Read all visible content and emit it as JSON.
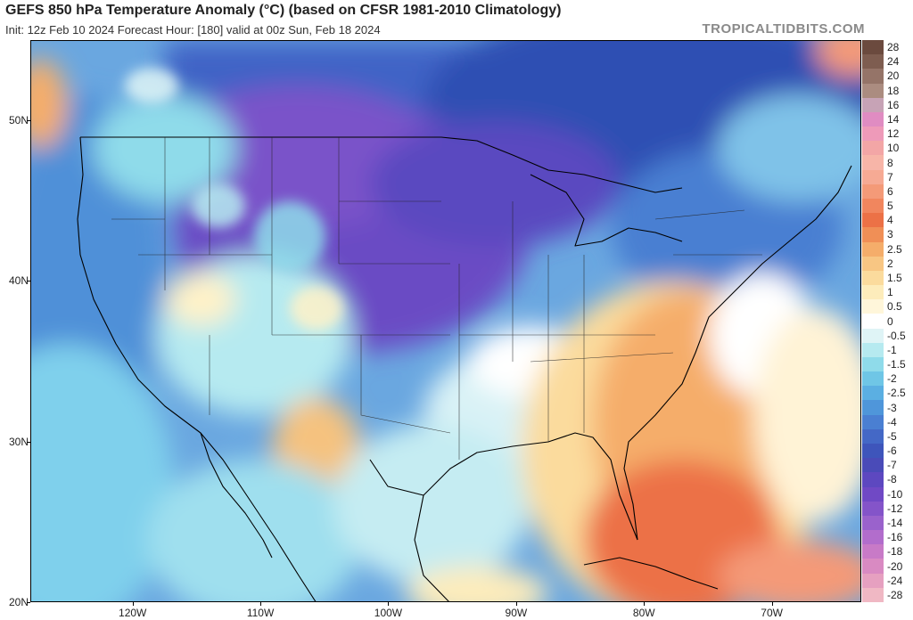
{
  "header": {
    "title": "GEFS 850 hPa Temperature Anomaly (°C) (based on CFSR 1981-2010 Climatology)",
    "subtitle": "Init: 12z Feb 10 2024   Forecast Hour: [180]   valid at 00z Sun, Feb 18 2024",
    "brand": "TROPICALTIDBITS.COM"
  },
  "map": {
    "lon_range": [
      -128,
      -63
    ],
    "lat_range": [
      20,
      55
    ],
    "lat_labels": [
      {
        "value": 50,
        "text": "50N"
      },
      {
        "value": 40,
        "text": "40N"
      },
      {
        "value": 30,
        "text": "30N"
      },
      {
        "value": 20,
        "text": "20N"
      }
    ],
    "lon_labels": [
      {
        "value": -120,
        "text": "120W"
      },
      {
        "value": -110,
        "text": "110W"
      },
      {
        "value": -100,
        "text": "100W"
      },
      {
        "value": -90,
        "text": "90W"
      },
      {
        "value": -80,
        "text": "80W"
      },
      {
        "value": -70,
        "text": "70W"
      }
    ]
  },
  "colorbar": {
    "labels": [
      "28",
      "24",
      "20",
      "18",
      "16",
      "14",
      "12",
      "10",
      "8",
      "7",
      "6",
      "5",
      "4",
      "3",
      "2.5",
      "2",
      "1.5",
      "1",
      "0.5",
      "0",
      "-0.5",
      "-1",
      "-1.5",
      "-2",
      "-2.5",
      "-3",
      "-4",
      "-5",
      "-6",
      "-7",
      "-8",
      "-10",
      "-12",
      "-14",
      "-16",
      "-18",
      "-20",
      "-24",
      "-28"
    ],
    "colors": [
      "#6b4a3e",
      "#7e5d50",
      "#957468",
      "#ab8c80",
      "#c7a3b6",
      "#e08cc2",
      "#ee9ab9",
      "#f3a6a6",
      "#f7b5a8",
      "#f6aa94",
      "#f49a78",
      "#f1865e",
      "#ec7146",
      "#f08f56",
      "#f5ad6a",
      "#f8c683",
      "#fbdb9d",
      "#fdecbb",
      "#fff6da",
      "#ffffff",
      "#dff4f6",
      "#b6eaf0",
      "#8fdbea",
      "#6fc6e6",
      "#5bafe2",
      "#4f96da",
      "#4a7fd2",
      "#4468c6",
      "#3e55bb",
      "#4a4bb8",
      "#5d48c0",
      "#7049c5",
      "#8454c9",
      "#9a62cc",
      "#b26dcc",
      "#c87ac7",
      "#d98ac2",
      "#e6a0c0",
      "#f0b8c4"
    ]
  }
}
